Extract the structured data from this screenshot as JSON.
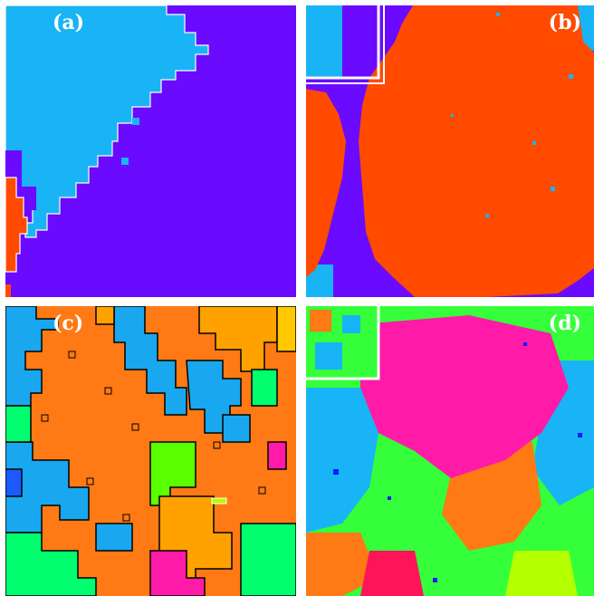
{
  "panels": [
    {
      "id": "a",
      "label": "(a)",
      "colors": [
        "#19b4f5",
        "#6a0aff",
        "#ff4a00",
        "#ffffff"
      ]
    },
    {
      "id": "b",
      "label": "(b)",
      "colors": [
        "#19b4f5",
        "#6a0aff",
        "#ff4a00",
        "#ffffff"
      ]
    },
    {
      "id": "c",
      "label": "(c)",
      "colors": [
        "#19a7f0",
        "#ff7a14",
        "#00ff6e",
        "#ffa200",
        "#ffc800",
        "#ff1aa8",
        "#5aff00",
        "#1a5aff",
        "#000000"
      ]
    },
    {
      "id": "d",
      "label": "(d)",
      "colors": [
        "#ff1aa8",
        "#35ff3a",
        "#19b4f5",
        "#ff7a14",
        "#ff145a",
        "#0a1aff",
        "#b4ff00",
        "#ffffff"
      ]
    }
  ]
}
